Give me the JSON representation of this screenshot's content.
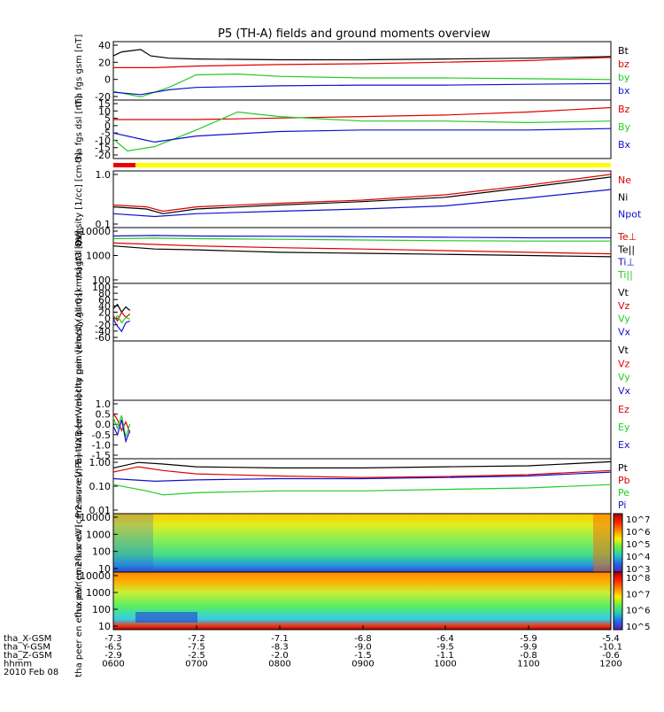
{
  "title": "P5 (TH-A) fields and ground moments overview",
  "colors": {
    "black": "#000000",
    "red": "#dd0000",
    "green": "#22cc22",
    "blue": "#1010cc"
  },
  "chart_data": [
    {
      "type": "line",
      "ylabel": "tha fgs gsm [nT]",
      "ticks": [
        "40",
        "20",
        "0",
        "-20"
      ],
      "ylim": [
        -28,
        46
      ],
      "series": [
        {
          "name": "Bt",
          "color": "black",
          "values": [
            [
              6.0,
              28
            ],
            [
              6.1,
              33
            ],
            [
              6.33,
              36
            ],
            [
              6.45,
              28
            ],
            [
              6.67,
              25
            ],
            [
              7,
              24
            ],
            [
              8,
              23
            ],
            [
              9,
              23
            ],
            [
              10,
              24
            ],
            [
              11,
              25
            ],
            [
              12,
              27
            ]
          ]
        },
        {
          "name": "bz",
          "color": "red",
          "values": [
            [
              6.0,
              13
            ],
            [
              6.5,
              13
            ],
            [
              7,
              15
            ],
            [
              8,
              17
            ],
            [
              9,
              18
            ],
            [
              10,
              20
            ],
            [
              11,
              22
            ],
            [
              12,
              26
            ]
          ]
        },
        {
          "name": "by",
          "color": "green",
          "values": [
            [
              6.0,
              -17
            ],
            [
              6.33,
              -24
            ],
            [
              6.67,
              -12
            ],
            [
              7,
              4
            ],
            [
              7.5,
              5
            ],
            [
              8,
              2
            ],
            [
              9,
              0
            ],
            [
              10,
              0
            ],
            [
              11,
              -1
            ],
            [
              12,
              -2
            ]
          ]
        },
        {
          "name": "bx",
          "color": "blue",
          "values": [
            [
              6.0,
              -18
            ],
            [
              6.33,
              -21
            ],
            [
              6.67,
              -15
            ],
            [
              7,
              -12
            ],
            [
              8,
              -10
            ],
            [
              9,
              -9
            ],
            [
              10,
              -9
            ],
            [
              11,
              -8
            ],
            [
              12,
              -7
            ]
          ]
        }
      ]
    },
    {
      "type": "line",
      "ylabel": "tha fgs dsl [nT]",
      "ticks": [
        "15",
        "10",
        "5",
        "0",
        "-5",
        "-10",
        "-15",
        "-20"
      ],
      "ylim": [
        -23,
        16
      ],
      "series": [
        {
          "name": "Bz",
          "color": "red",
          "values": [
            [
              6.0,
              3
            ],
            [
              6.5,
              3
            ],
            [
              7,
              3
            ],
            [
              8,
              4
            ],
            [
              9,
              5
            ],
            [
              10,
              6
            ],
            [
              11,
              8
            ],
            [
              12,
              11
            ]
          ]
        },
        {
          "name": "By",
          "color": "green",
          "values": [
            [
              6.0,
              -10
            ],
            [
              6.17,
              -18
            ],
            [
              6.5,
              -15
            ],
            [
              7,
              -4
            ],
            [
              7.5,
              8
            ],
            [
              8,
              5
            ],
            [
              9,
              2
            ],
            [
              10,
              2
            ],
            [
              11,
              1
            ],
            [
              12,
              2
            ]
          ]
        },
        {
          "name": "Bx",
          "color": "blue",
          "values": [
            [
              6.0,
              -6
            ],
            [
              6.33,
              -10
            ],
            [
              6.5,
              -12
            ],
            [
              7,
              -8
            ],
            [
              8,
              -5
            ],
            [
              9,
              -4
            ],
            [
              10,
              -4
            ],
            [
              11,
              -4
            ],
            [
              12,
              -3
            ]
          ]
        }
      ]
    },
    {
      "type": "line",
      "ylabel": "Density [1/cc] [cm-3]",
      "log": true,
      "ticks": [
        "1.0",
        "0.1"
      ],
      "ylim": [
        0.1,
        1.1
      ],
      "series": [
        {
          "name": "Ne",
          "color": "red",
          "values": [
            [
              6.0,
              0.26
            ],
            [
              6.4,
              0.24
            ],
            [
              6.6,
              0.2
            ],
            [
              7,
              0.24
            ],
            [
              8,
              0.28
            ],
            [
              9,
              0.32
            ],
            [
              10,
              0.4
            ],
            [
              11,
              0.6
            ],
            [
              12,
              0.95
            ]
          ]
        },
        {
          "name": "Ni",
          "color": "black",
          "values": [
            [
              6.0,
              0.24
            ],
            [
              6.4,
              0.22
            ],
            [
              6.6,
              0.18
            ],
            [
              7,
              0.22
            ],
            [
              8,
              0.26
            ],
            [
              9,
              0.3
            ],
            [
              10,
              0.36
            ],
            [
              11,
              0.55
            ],
            [
              12,
              0.85
            ]
          ]
        },
        {
          "name": "Npot",
          "color": "blue",
          "values": [
            [
              6.0,
              0.18
            ],
            [
              6.5,
              0.16
            ],
            [
              7,
              0.18
            ],
            [
              8,
              0.2
            ],
            [
              9,
              0.22
            ],
            [
              10,
              0.25
            ],
            [
              11,
              0.35
            ],
            [
              12,
              0.5
            ]
          ]
        }
      ]
    },
    {
      "type": "line",
      "ylabel": "magt3 [eV]",
      "log": true,
      "ticks": [
        "10000",
        "1000",
        "100"
      ],
      "ylim": [
        100,
        10000
      ],
      "series": [
        {
          "name": "Te⊥",
          "color": "red",
          "values": [
            [
              6.0,
              2800
            ],
            [
              6.5,
              2500
            ],
            [
              7,
              2200
            ],
            [
              8,
              1900
            ],
            [
              9,
              1700
            ],
            [
              10,
              1500
            ],
            [
              11,
              1300
            ],
            [
              12,
              1150
            ]
          ]
        },
        {
          "name": "Te||",
          "color": "black",
          "values": [
            [
              6.0,
              2200
            ],
            [
              6.5,
              1700
            ],
            [
              7,
              1600
            ],
            [
              8,
              1300
            ],
            [
              9,
              1200
            ],
            [
              10,
              1100
            ],
            [
              11,
              1000
            ],
            [
              12,
              900
            ]
          ]
        },
        {
          "name": "Ti⊥",
          "color": "blue",
          "values": [
            [
              6.0,
              5000
            ],
            [
              6.5,
              5200
            ],
            [
              7,
              5000
            ],
            [
              8,
              4900
            ],
            [
              9,
              4700
            ],
            [
              10,
              4500
            ],
            [
              11,
              4300
            ],
            [
              12,
              4300
            ]
          ]
        },
        {
          "name": "Ti||",
          "color": "green",
          "values": [
            [
              6.0,
              4000
            ],
            [
              6.5,
              4200
            ],
            [
              7,
              4000
            ],
            [
              8,
              3800
            ],
            [
              9,
              3600
            ],
            [
              10,
              3400
            ],
            [
              11,
              3300
            ],
            [
              12,
              3300
            ]
          ]
        }
      ]
    },
    {
      "type": "line",
      "ylabel": "tha peir velocity gsm [km/s] (All Qs)",
      "ticks": [
        "100",
        "80",
        "60",
        "40",
        "20",
        "0",
        "-20",
        "-40",
        "-60"
      ],
      "ylim": [
        -62,
        102
      ],
      "series": [
        {
          "name": "Vt",
          "color": "black",
          "values": [
            [
              6.0,
              30
            ],
            [
              6.05,
              42
            ],
            [
              6.1,
              20
            ],
            [
              6.15,
              35
            ],
            [
              6.2,
              25
            ]
          ]
        },
        {
          "name": "Vz",
          "color": "red",
          "values": [
            [
              6.0,
              10
            ],
            [
              6.05,
              -5
            ],
            [
              6.1,
              20
            ],
            [
              6.15,
              5
            ],
            [
              6.2,
              15
            ]
          ]
        },
        {
          "name": "Vy",
          "color": "green",
          "values": [
            [
              6.0,
              -5
            ],
            [
              6.05,
              10
            ],
            [
              6.1,
              -10
            ],
            [
              6.15,
              5
            ],
            [
              6.2,
              0
            ]
          ]
        },
        {
          "name": "Vx",
          "color": "blue",
          "values": [
            [
              6.0,
              0
            ],
            [
              6.05,
              -20
            ],
            [
              6.1,
              -35
            ],
            [
              6.15,
              -10
            ],
            [
              6.2,
              -5
            ]
          ]
        }
      ]
    },
    {
      "type": "line",
      "ylabel": "tha peer velocity gsm [km/s] (All Qs)",
      "ticks": [],
      "ylim": [
        0,
        1
      ],
      "series": [
        {
          "name": "Vt",
          "color": "black",
          "values": []
        },
        {
          "name": "Vz",
          "color": "red",
          "values": []
        },
        {
          "name": "Vy",
          "color": "green",
          "values": []
        },
        {
          "name": "Vx",
          "color": "blue",
          "values": []
        }
      ]
    },
    {
      "type": "line",
      "ylabel": "E=-VXB [mV/m]",
      "ticks": [
        "1.0",
        "0.5",
        "0.0",
        "-0.5",
        "-1.0",
        "-1.5"
      ],
      "ylim": [
        -1.6,
        1.1
      ],
      "series": [
        {
          "name": "Ez",
          "color": "red",
          "values": [
            [
              6.0,
              0.5
            ],
            [
              6.05,
              0.2
            ],
            [
              6.1,
              -0.3
            ],
            [
              6.15,
              0.1
            ],
            [
              6.2,
              -0.4
            ]
          ]
        },
        {
          "name": "Ey",
          "color": "green",
          "values": [
            [
              6.0,
              0.3
            ],
            [
              6.05,
              -0.2
            ],
            [
              6.1,
              0.4
            ],
            [
              6.15,
              -0.6
            ],
            [
              6.2,
              0.0
            ]
          ]
        },
        {
          "name": "Ex",
          "color": "blue",
          "values": [
            [
              6.0,
              -0.1
            ],
            [
              6.05,
              -0.5
            ],
            [
              6.1,
              0.2
            ],
            [
              6.15,
              -0.8
            ],
            [
              6.2,
              -0.3
            ]
          ]
        }
      ]
    },
    {
      "type": "line",
      "ylabel": "Pressure [nPa]",
      "log": true,
      "ticks": [
        "1.00",
        "0.10",
        "0.01"
      ],
      "ylim": [
        0.01,
        1.1
      ],
      "series": [
        {
          "name": "Pt",
          "color": "black",
          "values": [
            [
              6.0,
              0.5
            ],
            [
              6.3,
              0.8
            ],
            [
              6.6,
              0.7
            ],
            [
              7,
              0.55
            ],
            [
              8,
              0.5
            ],
            [
              9,
              0.5
            ],
            [
              10,
              0.55
            ],
            [
              11,
              0.6
            ],
            [
              12,
              0.85
            ]
          ]
        },
        {
          "name": "Pb",
          "color": "red",
          "values": [
            [
              6.0,
              0.35
            ],
            [
              6.3,
              0.55
            ],
            [
              6.6,
              0.4
            ],
            [
              7,
              0.3
            ],
            [
              8,
              0.25
            ],
            [
              9,
              0.22
            ],
            [
              10,
              0.24
            ],
            [
              11,
              0.28
            ],
            [
              12,
              0.4
            ]
          ]
        },
        {
          "name": "Pe",
          "color": "green",
          "values": [
            [
              6.0,
              0.12
            ],
            [
              6.4,
              0.07
            ],
            [
              6.6,
              0.05
            ],
            [
              7,
              0.06
            ],
            [
              8,
              0.07
            ],
            [
              9,
              0.07
            ],
            [
              10,
              0.08
            ],
            [
              11,
              0.09
            ],
            [
              12,
              0.12
            ]
          ]
        },
        {
          "name": "Pi",
          "color": "blue",
          "values": [
            [
              6.0,
              0.2
            ],
            [
              6.5,
              0.16
            ],
            [
              7,
              0.18
            ],
            [
              8,
              0.2
            ],
            [
              9,
              0.2
            ],
            [
              10,
              0.22
            ],
            [
              11,
              0.25
            ],
            [
              12,
              0.35
            ]
          ]
        }
      ]
    },
    {
      "type": "heatmap",
      "ylabel": "tha peir en eflux eV (cm2-s-sr-eV)",
      "ticks": [
        "10000",
        "1000",
        "100",
        "10"
      ],
      "colorbar": [
        "10^7",
        "10^6",
        "10^5",
        "10^4",
        "10^3"
      ]
    },
    {
      "type": "heatmap",
      "ylabel": "tha peer en eflux eV (cm2-s-sr-eV)",
      "ticks": [
        "10000",
        "1000",
        "100",
        "10"
      ],
      "colorbar": [
        "10^8",
        "10^7",
        "10^6",
        "10^5"
      ]
    }
  ],
  "xaxis": {
    "rows": [
      {
        "label": "tha_X-GSM",
        "values": [
          "-7.3",
          "-7.2",
          "-7.1",
          "-6.8",
          "-6.4",
          "-5.9",
          "-5.4"
        ]
      },
      {
        "label": "tha_Y-GSM",
        "values": [
          "-6.5",
          "-7.5",
          "-8.3",
          "-9.0",
          "-9.5",
          "-9.9",
          "-10.1"
        ]
      },
      {
        "label": "tha_Z-GSM",
        "values": [
          "-2.9",
          "-2.5",
          "-2.0",
          "-1.5",
          "-1.1",
          "-0.8",
          "-0.6"
        ]
      },
      {
        "label": "hhmm",
        "values": [
          "0600",
          "0700",
          "0800",
          "0900",
          "1000",
          "1100",
          "1200"
        ]
      }
    ],
    "date": "2010 Feb 08"
  },
  "status_bar": {
    "colors": [
      "red",
      "yellow"
    ]
  }
}
